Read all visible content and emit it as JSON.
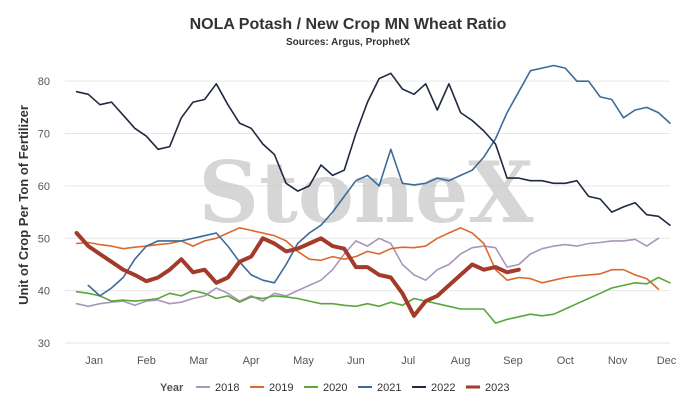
{
  "chart_data": {
    "type": "line",
    "title": "NOLA Potash / New Crop MN Wheat Ratio",
    "subtitle": "Sources: Argus, ProphetX",
    "ylabel": "Unit of Crop Per Ton of Fertilizer",
    "xlabel": "",
    "ylim": [
      30,
      85
    ],
    "yticks": [
      30,
      40,
      50,
      60,
      70,
      80
    ],
    "x_range": [
      0,
      52
    ],
    "month_ticks": [
      {
        "label": "Jan",
        "week": 2.5
      },
      {
        "label": "Feb",
        "week": 7
      },
      {
        "label": "Mar",
        "week": 11.5
      },
      {
        "label": "Apr",
        "week": 16
      },
      {
        "label": "May",
        "week": 20.5
      },
      {
        "label": "Jun",
        "week": 25
      },
      {
        "label": "Jul",
        "week": 29.5
      },
      {
        "label": "Aug",
        "week": 34
      },
      {
        "label": "Sep",
        "week": 38.5
      },
      {
        "label": "Oct",
        "week": 43
      },
      {
        "label": "Nov",
        "week": 47.5
      },
      {
        "label": "Dec",
        "week": 51.7
      }
    ],
    "grid": true,
    "legend_title": "Year",
    "legend_position": "bottom",
    "watermark": "StoneX",
    "series": [
      {
        "name": "2018",
        "color": "#a995bd",
        "width": 1.6,
        "values": [
          [
            1,
            37.5
          ],
          [
            2,
            37
          ],
          [
            3,
            37.5
          ],
          [
            4,
            37.8
          ],
          [
            5,
            38
          ],
          [
            6,
            37.2
          ],
          [
            7,
            38
          ],
          [
            8,
            38.2
          ],
          [
            9,
            37.5
          ],
          [
            10,
            37.8
          ],
          [
            11,
            38.5
          ],
          [
            12,
            39
          ],
          [
            13,
            40.5
          ],
          [
            14,
            39.5
          ],
          [
            15,
            38
          ],
          [
            16,
            39
          ],
          [
            17,
            38
          ],
          [
            18,
            39.5
          ],
          [
            19,
            39
          ],
          [
            20,
            40
          ],
          [
            21,
            41
          ],
          [
            22,
            42
          ],
          [
            23,
            44
          ],
          [
            24,
            47
          ],
          [
            25,
            49.5
          ],
          [
            26,
            48.5
          ],
          [
            27,
            50
          ],
          [
            28,
            49
          ],
          [
            29,
            45
          ],
          [
            30,
            43
          ],
          [
            31,
            42
          ],
          [
            32,
            44
          ],
          [
            33,
            45
          ],
          [
            34,
            47
          ],
          [
            35,
            48.2
          ],
          [
            36,
            48.5
          ],
          [
            37,
            48.2
          ],
          [
            38,
            44.5
          ],
          [
            39,
            45
          ],
          [
            40,
            47
          ],
          [
            41,
            48
          ],
          [
            42,
            48.5
          ],
          [
            43,
            48.8
          ],
          [
            44,
            48.5
          ],
          [
            45,
            49
          ],
          [
            46,
            49.2
          ],
          [
            47,
            49.5
          ],
          [
            48,
            49.5
          ],
          [
            49,
            49.8
          ],
          [
            50,
            48.5
          ],
          [
            51,
            50
          ]
        ]
      },
      {
        "name": "2019",
        "color": "#d96a2c",
        "width": 1.6,
        "values": [
          [
            1,
            49
          ],
          [
            2,
            49.2
          ],
          [
            3,
            48.8
          ],
          [
            4,
            48.5
          ],
          [
            5,
            48
          ],
          [
            6,
            48.3
          ],
          [
            7,
            48.5
          ],
          [
            8,
            48.8
          ],
          [
            9,
            49
          ],
          [
            10,
            49.5
          ],
          [
            11,
            48.5
          ],
          [
            12,
            49.5
          ],
          [
            13,
            50
          ],
          [
            14,
            51
          ],
          [
            15,
            52
          ],
          [
            16,
            51.5
          ],
          [
            17,
            51
          ],
          [
            18,
            50.5
          ],
          [
            19,
            49.5
          ],
          [
            20,
            47.5
          ],
          [
            21,
            46
          ],
          [
            22,
            45.8
          ],
          [
            23,
            46.5
          ],
          [
            24,
            46
          ],
          [
            25,
            46.5
          ],
          [
            26,
            47.5
          ],
          [
            27,
            47
          ],
          [
            28,
            48
          ],
          [
            29,
            48.3
          ],
          [
            30,
            48.2
          ],
          [
            31,
            48.5
          ],
          [
            32,
            50
          ],
          [
            33,
            51
          ],
          [
            34,
            52
          ],
          [
            35,
            51
          ],
          [
            36,
            49
          ],
          [
            37,
            44
          ],
          [
            38,
            42
          ],
          [
            39,
            42.5
          ],
          [
            40,
            42.3
          ],
          [
            41,
            41.5
          ],
          [
            42,
            42
          ],
          [
            43,
            42.5
          ],
          [
            44,
            42.8
          ],
          [
            45,
            43
          ],
          [
            46,
            43.2
          ],
          [
            47,
            44
          ],
          [
            48,
            44
          ],
          [
            49,
            43
          ],
          [
            50,
            42.3
          ],
          [
            51,
            40.3
          ]
        ]
      },
      {
        "name": "2020",
        "color": "#5aa63c",
        "width": 1.6,
        "values": [
          [
            1,
            39.8
          ],
          [
            2,
            39.5
          ],
          [
            3,
            39
          ],
          [
            4,
            38
          ],
          [
            5,
            38.2
          ],
          [
            6,
            38
          ],
          [
            7,
            38.2
          ],
          [
            8,
            38.5
          ],
          [
            9,
            39.5
          ],
          [
            10,
            39
          ],
          [
            11,
            40
          ],
          [
            12,
            39.5
          ],
          [
            13,
            38.5
          ],
          [
            14,
            39
          ],
          [
            15,
            37.8
          ],
          [
            16,
            38.8
          ],
          [
            17,
            38.5
          ],
          [
            18,
            39
          ],
          [
            19,
            38.8
          ],
          [
            20,
            38.5
          ],
          [
            21,
            38
          ],
          [
            22,
            37.5
          ],
          [
            23,
            37.5
          ],
          [
            24,
            37.2
          ],
          [
            25,
            37
          ],
          [
            26,
            37.5
          ],
          [
            27,
            37
          ],
          [
            28,
            37.8
          ],
          [
            29,
            37.2
          ],
          [
            30,
            38.5
          ],
          [
            31,
            38
          ],
          [
            32,
            37.5
          ],
          [
            33,
            37
          ],
          [
            34,
            36.5
          ],
          [
            35,
            36.5
          ],
          [
            36,
            36.5
          ],
          [
            37,
            33.8
          ],
          [
            38,
            34.5
          ],
          [
            39,
            35
          ],
          [
            40,
            35.5
          ],
          [
            41,
            35.2
          ],
          [
            42,
            35.5
          ],
          [
            43,
            36.5
          ],
          [
            44,
            37.5
          ],
          [
            45,
            38.5
          ],
          [
            46,
            39.5
          ],
          [
            47,
            40.5
          ],
          [
            48,
            41
          ],
          [
            49,
            41.5
          ],
          [
            50,
            41.3
          ],
          [
            51,
            42.5
          ],
          [
            52,
            41.5
          ]
        ]
      },
      {
        "name": "2021",
        "color": "#3d6b99",
        "width": 1.6,
        "values": [
          [
            2,
            41
          ],
          [
            3,
            39
          ],
          [
            4,
            40.5
          ],
          [
            5,
            42.5
          ],
          [
            6,
            46
          ],
          [
            7,
            48.5
          ],
          [
            8,
            49.5
          ],
          [
            9,
            49.5
          ],
          [
            10,
            49.5
          ],
          [
            11,
            50
          ],
          [
            12,
            50.5
          ],
          [
            13,
            51
          ],
          [
            14,
            48.5
          ],
          [
            15,
            45.5
          ],
          [
            16,
            43
          ],
          [
            17,
            42
          ],
          [
            18,
            41.5
          ],
          [
            19,
            45
          ],
          [
            20,
            49
          ],
          [
            21,
            51
          ],
          [
            22,
            52.5
          ],
          [
            23,
            55
          ],
          [
            24,
            58
          ],
          [
            25,
            61
          ],
          [
            26,
            62
          ],
          [
            27,
            60
          ],
          [
            28,
            67
          ],
          [
            29,
            60.5
          ],
          [
            30,
            60.2
          ],
          [
            31,
            60.5
          ],
          [
            32,
            61.5
          ],
          [
            33,
            61
          ],
          [
            34,
            62
          ],
          [
            35,
            63
          ],
          [
            36,
            65.5
          ],
          [
            37,
            69
          ],
          [
            38,
            74
          ],
          [
            39,
            78
          ],
          [
            40,
            82
          ],
          [
            41,
            82.5
          ],
          [
            42,
            83
          ],
          [
            43,
            82.5
          ],
          [
            44,
            80
          ],
          [
            45,
            80
          ],
          [
            46,
            77
          ],
          [
            47,
            76.5
          ],
          [
            48,
            73
          ],
          [
            49,
            74.5
          ],
          [
            50,
            75
          ],
          [
            51,
            74
          ],
          [
            52,
            72
          ]
        ]
      },
      {
        "name": "2022",
        "color": "#1f2a40",
        "width": 1.6,
        "values": [
          [
            1,
            78
          ],
          [
            2,
            77.5
          ],
          [
            3,
            75.5
          ],
          [
            4,
            76
          ],
          [
            5,
            73.5
          ],
          [
            6,
            71
          ],
          [
            7,
            69.5
          ],
          [
            8,
            67
          ],
          [
            9,
            67.5
          ],
          [
            10,
            73
          ],
          [
            11,
            76
          ],
          [
            12,
            76.5
          ],
          [
            13,
            79.5
          ],
          [
            14,
            75.5
          ],
          [
            15,
            72
          ],
          [
            16,
            71
          ],
          [
            17,
            68
          ],
          [
            18,
            66
          ],
          [
            19,
            60.5
          ],
          [
            20,
            59
          ],
          [
            21,
            60
          ],
          [
            22,
            64
          ],
          [
            23,
            62
          ],
          [
            24,
            63
          ],
          [
            25,
            70
          ],
          [
            26,
            76
          ],
          [
            27,
            80.5
          ],
          [
            28,
            81.5
          ],
          [
            29,
            78.5
          ],
          [
            30,
            77.5
          ],
          [
            31,
            79.5
          ],
          [
            32,
            74.5
          ],
          [
            33,
            79.5
          ],
          [
            34,
            74
          ],
          [
            35,
            72.5
          ],
          [
            36,
            70.5
          ],
          [
            37,
            68
          ],
          [
            38,
            61.5
          ],
          [
            39,
            61.5
          ],
          [
            40,
            61
          ],
          [
            41,
            61
          ],
          [
            42,
            60.5
          ],
          [
            43,
            60.5
          ],
          [
            44,
            61
          ],
          [
            45,
            58
          ],
          [
            46,
            57.5
          ],
          [
            47,
            55
          ],
          [
            48,
            56
          ],
          [
            49,
            56.8
          ],
          [
            50,
            54.5
          ],
          [
            51,
            54.2
          ],
          [
            52,
            52.5
          ]
        ]
      },
      {
        "name": "2023",
        "color": "#a33a2a",
        "width": 4,
        "values": [
          [
            1,
            51
          ],
          [
            2,
            48.5
          ],
          [
            3,
            47
          ],
          [
            4,
            45.5
          ],
          [
            5,
            44
          ],
          [
            6,
            43
          ],
          [
            7,
            41.8
          ],
          [
            8,
            42.5
          ],
          [
            9,
            44
          ],
          [
            10,
            46
          ],
          [
            11,
            43.5
          ],
          [
            12,
            44
          ],
          [
            13,
            41.5
          ],
          [
            14,
            42.5
          ],
          [
            15,
            45.5
          ],
          [
            16,
            46.5
          ],
          [
            17,
            50
          ],
          [
            18,
            49
          ],
          [
            19,
            47.5
          ],
          [
            20,
            48
          ],
          [
            21,
            49
          ],
          [
            22,
            50
          ],
          [
            23,
            48.5
          ],
          [
            24,
            48
          ],
          [
            25,
            44.5
          ],
          [
            26,
            44.5
          ],
          [
            27,
            43
          ],
          [
            28,
            42.5
          ],
          [
            29,
            39.5
          ],
          [
            30,
            35.2
          ],
          [
            31,
            38
          ],
          [
            32,
            39
          ],
          [
            33,
            41
          ],
          [
            34,
            43
          ],
          [
            35,
            45
          ],
          [
            36,
            44
          ],
          [
            37,
            44.5
          ],
          [
            38,
            43.5
          ],
          [
            39,
            44
          ]
        ]
      }
    ]
  }
}
